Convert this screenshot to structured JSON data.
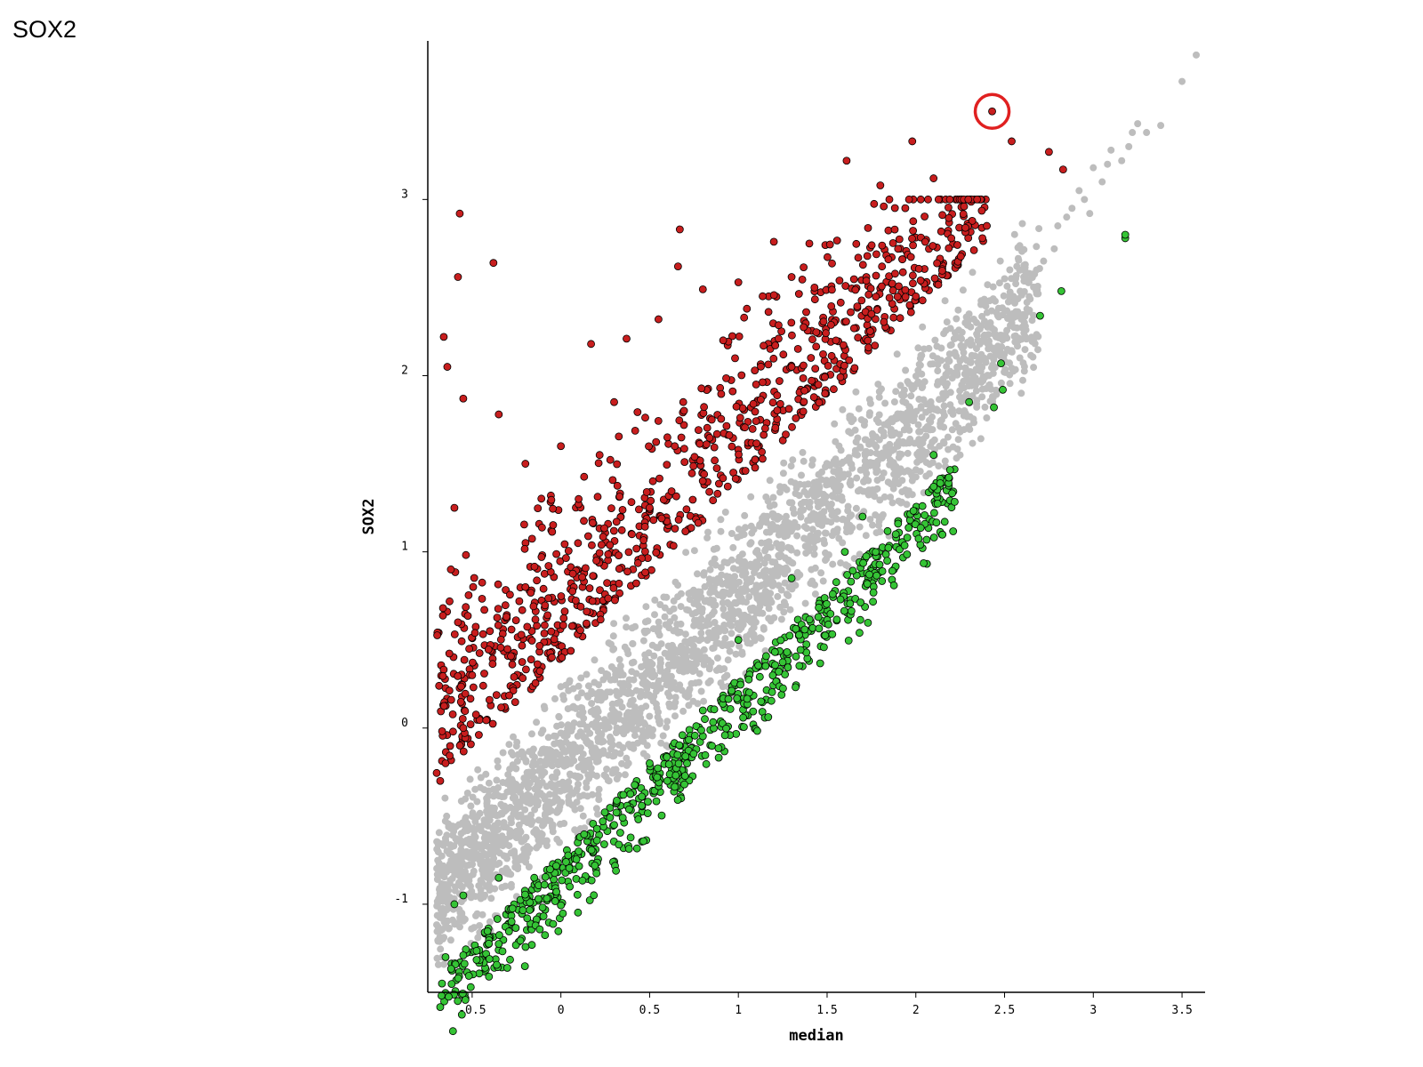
{
  "page": {
    "title": "SOX2"
  },
  "colors": {
    "up": "#c81e1e",
    "down": "#35c435",
    "unchanged": "#bdbdbd",
    "marker_edge": "#000000",
    "highlight_ring": "#e02020"
  },
  "chart_data": {
    "type": "scatter",
    "title": "",
    "xlabel": "median",
    "ylabel": "SOX2",
    "xlim": [
      -0.75,
      3.63
    ],
    "ylim": [
      -1.5,
      3.9
    ],
    "x_ticks": [
      -0.5,
      0,
      0.5,
      1,
      1.5,
      2,
      2.5,
      3,
      3.5
    ],
    "x_tick_labels": [
      "-0.5",
      "0",
      "0.5",
      "1",
      "1.5",
      "2",
      "2.5",
      "3",
      "3.5"
    ],
    "y_ticks": [
      -1,
      0,
      1,
      2,
      3
    ],
    "y_tick_labels": [
      "-1",
      "0",
      "1",
      "2",
      "3"
    ],
    "grid": false,
    "legend": "none",
    "series": [
      {
        "group": "unchanged",
        "points": [
          [
            3.58,
            3.82
          ],
          [
            3.5,
            3.67
          ],
          [
            3.38,
            3.42
          ],
          [
            3.3,
            3.38
          ],
          [
            3.25,
            3.43
          ],
          [
            3.2,
            3.3
          ],
          [
            3.16,
            3.22
          ],
          [
            3.08,
            3.2
          ],
          [
            3.05,
            3.1
          ],
          [
            3.0,
            3.18
          ],
          [
            2.95,
            3.0
          ],
          [
            2.92,
            3.05
          ],
          [
            2.88,
            2.95
          ],
          [
            2.85,
            2.9
          ],
          [
            2.8,
            2.85
          ],
          [
            2.78,
            2.72
          ],
          [
            2.72,
            2.65
          ],
          [
            2.68,
            2.6
          ],
          [
            2.62,
            2.55
          ],
          [
            2.55,
            2.45
          ],
          [
            2.5,
            2.55
          ],
          [
            2.42,
            2.3
          ],
          [
            2.35,
            2.2
          ],
          [
            2.3,
            2.35
          ],
          [
            3.1,
            3.28
          ],
          [
            3.22,
            3.38
          ],
          [
            2.98,
            2.92
          ]
        ]
      },
      {
        "group": "up",
        "points": [
          [
            2.43,
            3.5
          ],
          [
            2.54,
            3.33
          ],
          [
            2.75,
            3.27
          ],
          [
            2.83,
            3.17
          ],
          [
            1.61,
            3.22
          ],
          [
            1.98,
            3.33
          ],
          [
            2.1,
            3.12
          ],
          [
            1.8,
            3.08
          ],
          [
            -0.57,
            2.92
          ],
          [
            -0.38,
            2.64
          ],
          [
            -0.58,
            2.56
          ],
          [
            0.67,
            2.83
          ],
          [
            0.66,
            2.62
          ],
          [
            1.2,
            2.76
          ],
          [
            -0.66,
            2.22
          ],
          [
            -0.64,
            2.05
          ],
          [
            -0.55,
            1.87
          ],
          [
            -0.35,
            1.78
          ],
          [
            0.17,
            2.18
          ],
          [
            0.37,
            2.21
          ],
          [
            0.55,
            2.32
          ],
          [
            1.4,
            2.75
          ],
          [
            1.9,
            2.72
          ],
          [
            2.2,
            2.78
          ],
          [
            2.4,
            2.85
          ],
          [
            0.8,
            2.49
          ],
          [
            1.0,
            2.53
          ],
          [
            1.3,
            2.56
          ],
          [
            0.0,
            1.6
          ],
          [
            0.3,
            1.85
          ],
          [
            -0.2,
            1.5
          ],
          [
            0.1,
            1.3
          ],
          [
            0.4,
            1.1
          ],
          [
            0.6,
            1.65
          ],
          [
            0.85,
            1.75
          ],
          [
            1.1,
            1.95
          ],
          [
            1.3,
            2.05
          ],
          [
            1.55,
            2.2
          ],
          [
            1.75,
            2.35
          ],
          [
            2.0,
            2.45
          ],
          [
            -0.6,
            1.25
          ],
          [
            -0.62,
            0.9
          ],
          [
            -0.58,
            0.6
          ],
          [
            -0.5,
            0.3
          ],
          [
            -0.55,
            0.0
          ],
          [
            -0.65,
            -0.2
          ],
          [
            -0.68,
            -0.3
          ],
          [
            -0.4,
            0.55
          ],
          [
            -0.2,
            0.8
          ],
          [
            0.2,
            0.95
          ],
          [
            0.5,
            1.25
          ]
        ]
      },
      {
        "group": "down",
        "points": [
          [
            3.18,
            2.78
          ],
          [
            3.18,
            2.8
          ],
          [
            2.82,
            2.48
          ],
          [
            2.7,
            2.34
          ],
          [
            2.48,
            2.07
          ],
          [
            2.49,
            1.92
          ],
          [
            2.44,
            1.82
          ],
          [
            1.9,
            1.16
          ],
          [
            1.6,
            1.0
          ],
          [
            1.3,
            0.85
          ],
          [
            1.0,
            0.5
          ],
          [
            0.8,
            0.1
          ],
          [
            0.5,
            -0.2
          ],
          [
            0.3,
            -0.55
          ],
          [
            0.1,
            -0.7
          ],
          [
            -0.15,
            -0.85
          ],
          [
            -0.35,
            -0.85
          ],
          [
            -0.55,
            -0.95
          ],
          [
            -0.65,
            -1.3
          ],
          [
            -0.67,
            -1.45
          ],
          [
            -0.55,
            -1.29
          ],
          [
            -0.6,
            -1.0
          ],
          [
            1.7,
            1.2
          ],
          [
            2.1,
            1.55
          ],
          [
            2.3,
            1.85
          ],
          [
            0.6,
            -0.3
          ],
          [
            0.05,
            -0.9
          ]
        ]
      }
    ],
    "highlight": {
      "x": 2.43,
      "y": 3.5
    }
  }
}
